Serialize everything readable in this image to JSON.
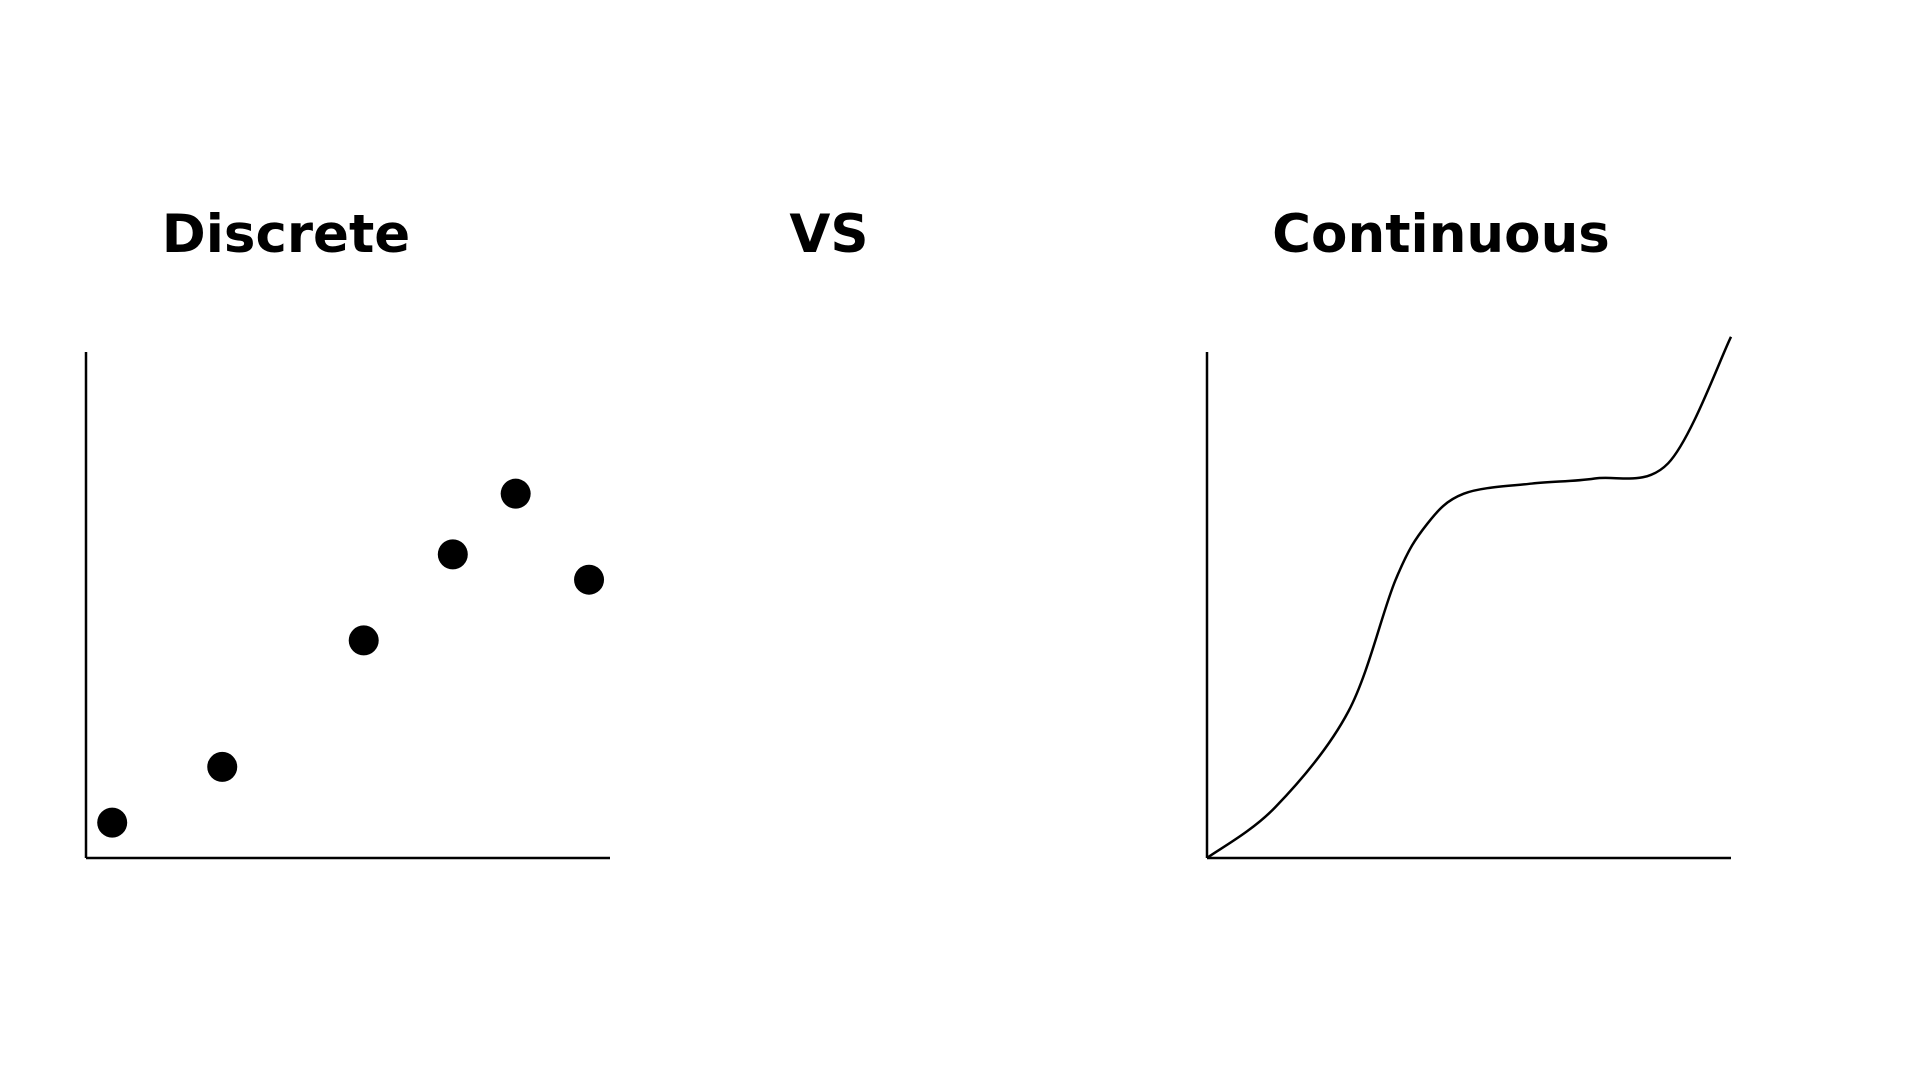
{
  "headings": {
    "left": "Discrete",
    "middle": "VS",
    "right": "Continuous"
  },
  "colors": {
    "ink": "#000000",
    "background": "#ffffff"
  },
  "chart_data": [
    {
      "type": "scatter",
      "title": "Discrete",
      "xlabel": "",
      "ylabel": "",
      "xlim": [
        0,
        10
      ],
      "ylim": [
        0,
        10
      ],
      "grid": false,
      "points": [
        {
          "x": 0.5,
          "y": 0.7
        },
        {
          "x": 2.6,
          "y": 1.8
        },
        {
          "x": 5.3,
          "y": 4.3
        },
        {
          "x": 7.0,
          "y": 6.0
        },
        {
          "x": 8.2,
          "y": 7.2
        },
        {
          "x": 9.6,
          "y": 5.5
        }
      ]
    },
    {
      "type": "line",
      "title": "Continuous",
      "xlabel": "",
      "ylabel": "",
      "xlim": [
        0,
        10
      ],
      "ylim": [
        0,
        10
      ],
      "grid": false,
      "points": [
        {
          "x": 0.0,
          "y": 0.0
        },
        {
          "x": 1.3,
          "y": 1.0
        },
        {
          "x": 2.7,
          "y": 2.9
        },
        {
          "x": 3.6,
          "y": 5.5
        },
        {
          "x": 4.2,
          "y": 6.6
        },
        {
          "x": 4.9,
          "y": 7.2
        },
        {
          "x": 6.2,
          "y": 7.4
        },
        {
          "x": 7.4,
          "y": 7.5
        },
        {
          "x": 8.8,
          "y": 7.8
        },
        {
          "x": 10.0,
          "y": 10.3
        }
      ]
    }
  ]
}
